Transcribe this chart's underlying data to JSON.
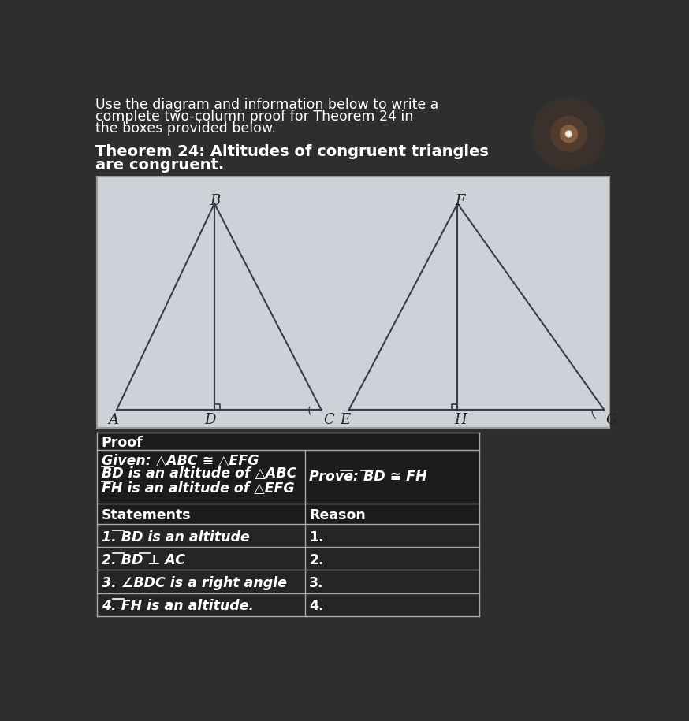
{
  "bg_color": "#2e2e2e",
  "diagram_bg": "#cdd2d8",
  "header_text_line1": "Use the diagram and information below to write a",
  "header_text_line2": "complete two-column proof for Theorem 24 in",
  "header_text_line3": "the boxes provided below.",
  "theorem_line1": "Theorem 24: Altitudes of congruent triangles",
  "theorem_line2": "are congruent.",
  "proof_header": "Proof",
  "given_line1": "Given: △ABC ≅ △EFG",
  "given_line2": "BD is an altitude of △ABC",
  "given_line3": "FH is an altitude of △EFG",
  "prove_text": "Prove: BD ≅ FH",
  "statements_header": "Statements",
  "reason_header": "Reason",
  "rows": [
    {
      "statement": "1. BD is an altitude",
      "reason": "1."
    },
    {
      "statement": "2. BD ⊥ AC",
      "reason": "2."
    },
    {
      "statement": "3. ∠BDC is a right angle",
      "reason": "3."
    },
    {
      "statement": "4. FH is an altitude.",
      "reason": "4."
    }
  ],
  "tri_color": "#3a3a4a",
  "table_border_color": "#aaaaaa",
  "text_color": "#ffffff",
  "dark_row_color": "#1c1c1c",
  "light_row_color": "#252525"
}
